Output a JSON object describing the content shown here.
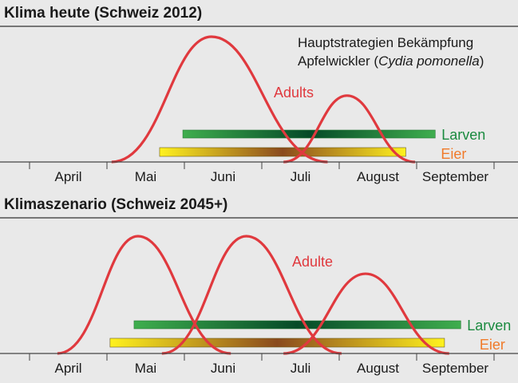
{
  "colors": {
    "background": "#e9e9e9",
    "adults": "#e0393e",
    "larven": "#1a8a3f",
    "eier": "#f07a2a",
    "axis": "#444444"
  },
  "note": {
    "line1": "Hauptstrategien Bekämpfung",
    "line2_prefix": "Apfelwickler (",
    "line2_species": "Cydia pomonella",
    "line2_suffix": ")"
  },
  "chart_data": [
    {
      "type": "line",
      "title": "Klima heute (Schweiz 2012)",
      "x_categories": [
        "April",
        "Mai",
        "Juni",
        "Juli",
        "August",
        "September"
      ],
      "adults_label": "Adults",
      "larven_label": "Larven",
      "eier_label": "Eier",
      "adult_generations": [
        {
          "start": 1.06,
          "peak": 2.35,
          "end": 3.85,
          "height": 1.0
        },
        {
          "start": 3.28,
          "peak": 4.1,
          "end": 4.98,
          "height": 0.53
        }
      ],
      "larven_range": [
        1.98,
        5.24
      ],
      "eier_range": [
        1.68,
        4.86
      ]
    },
    {
      "type": "line",
      "title": "Klimaszenario (Schweiz 2045+)",
      "x_categories": [
        "April",
        "Mai",
        "Juni",
        "Juli",
        "August",
        "September"
      ],
      "adults_label": "Adulte",
      "larven_label": "Larven",
      "eier_label": "Eier",
      "adult_generations": [
        {
          "start": 0.36,
          "peak": 1.4,
          "end": 2.6,
          "height": 1.0
        },
        {
          "start": 1.71,
          "peak": 2.8,
          "end": 4.03,
          "height": 1.0
        },
        {
          "start": 3.28,
          "peak": 4.34,
          "end": 5.42,
          "height": 0.68
        }
      ],
      "larven_range": [
        1.35,
        5.57
      ],
      "eier_range": [
        1.04,
        5.36
      ]
    }
  ]
}
